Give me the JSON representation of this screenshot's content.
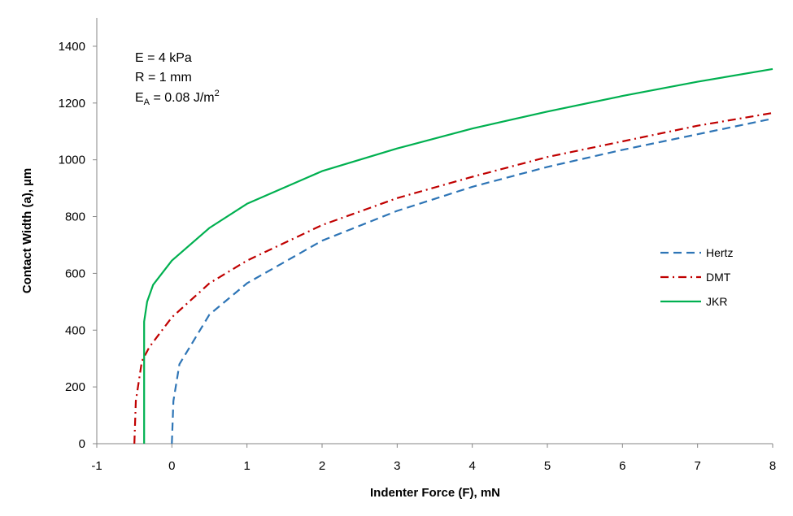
{
  "chart_data": {
    "type": "line",
    "xlabel": "Indenter Force (F), mN",
    "ylabel_main": "Contact Width (a), ",
    "ylabel_unit": "µm",
    "xlim": [
      -1,
      8
    ],
    "ylim": [
      0,
      1500
    ],
    "xticks": [
      "-1",
      "0",
      "1",
      "2",
      "3",
      "4",
      "5",
      "6",
      "7",
      "8"
    ],
    "yticks": [
      "0",
      "200",
      "400",
      "600",
      "800",
      "1000",
      "1200",
      "1400"
    ],
    "grid": false,
    "legend_position": "right",
    "annotations": {
      "line1": "E = 4 kPa",
      "line2": "R = 1 mm",
      "line3_main": "E",
      "line3_sub": "A",
      "line3_rest": " = 0.08 J/m",
      "line3_sup": "2"
    },
    "series": [
      {
        "name": "Hertz",
        "color": "#2E75B6",
        "dash": "dash",
        "points": [
          [
            0,
            0
          ],
          [
            0.02,
            150
          ],
          [
            0.1,
            280
          ],
          [
            0.5,
            455
          ],
          [
            1,
            565
          ],
          [
            2,
            715
          ],
          [
            3,
            820
          ],
          [
            4,
            905
          ],
          [
            5,
            975
          ],
          [
            6,
            1035
          ],
          [
            7,
            1090
          ],
          [
            8,
            1145
          ]
        ]
      },
      {
        "name": "DMT",
        "color": "#C00000",
        "dash": "dashdot",
        "points": [
          [
            -0.5,
            0
          ],
          [
            -0.48,
            150
          ],
          [
            -0.4,
            290
          ],
          [
            -0.3,
            340
          ],
          [
            0,
            445
          ],
          [
            0.5,
            565
          ],
          [
            1,
            645
          ],
          [
            2,
            770
          ],
          [
            3,
            865
          ],
          [
            4,
            940
          ],
          [
            5,
            1010
          ],
          [
            6,
            1065
          ],
          [
            7,
            1120
          ],
          [
            8,
            1165
          ]
        ]
      },
      {
        "name": "JKR",
        "color": "#00B050",
        "dash": "solid",
        "points": [
          [
            -0.37,
            0
          ],
          [
            -0.37,
            430
          ],
          [
            -0.33,
            500
          ],
          [
            -0.25,
            560
          ],
          [
            0,
            645
          ],
          [
            0.5,
            760
          ],
          [
            1,
            845
          ],
          [
            2,
            960
          ],
          [
            3,
            1040
          ],
          [
            4,
            1110
          ],
          [
            5,
            1170
          ],
          [
            6,
            1225
          ],
          [
            7,
            1275
          ],
          [
            8,
            1320
          ]
        ]
      }
    ]
  }
}
